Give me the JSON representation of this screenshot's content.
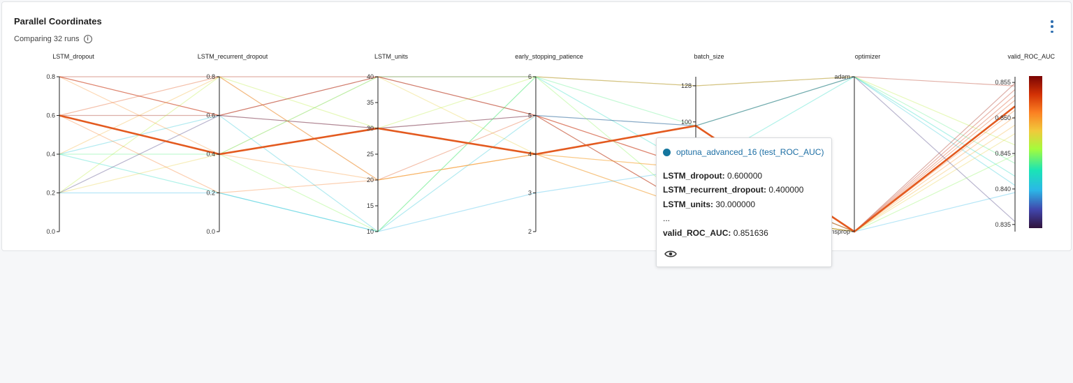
{
  "panel": {
    "title": "Parallel Coordinates",
    "subtitle": "Comparing 32 runs"
  },
  "colors": {
    "highlight": "#e35a1f",
    "axis": "#222222",
    "accent_blue": "#2f6fb1"
  },
  "chart_data": {
    "type": "parallel_coordinates",
    "axes": [
      {
        "name": "LSTM_dropout",
        "range": [
          0,
          0.8
        ],
        "ticks": [
          "0.0",
          "0.2",
          "0.4",
          "0.6",
          "0.8"
        ]
      },
      {
        "name": "LSTM_recurrent_dropout",
        "range": [
          0,
          0.8
        ],
        "ticks": [
          "0.0",
          "0.2",
          "0.4",
          "0.6",
          "0.8"
        ]
      },
      {
        "name": "LSTM_units",
        "range": [
          10,
          40
        ],
        "ticks": [
          "10",
          "15",
          "20",
          "25",
          "30",
          "35",
          "40"
        ]
      },
      {
        "name": "early_stopping_patience",
        "range": [
          2,
          6
        ],
        "ticks": [
          "2",
          "3",
          "4",
          "5",
          "6"
        ]
      },
      {
        "name": "batch_size",
        "range": [
          15,
          135
        ],
        "ticks": [
          "100",
          "128"
        ],
        "tick_values": [
          100,
          128
        ]
      },
      {
        "name": "optimizer",
        "categorical": true,
        "ticks": [
          "adam",
          "rmsprop"
        ]
      },
      {
        "name": "valid_ROC_AUC",
        "range": [
          0.834,
          0.8558
        ],
        "ticks": [
          "0.835",
          "0.840",
          "0.845",
          "0.850",
          "0.855"
        ],
        "tick_values": [
          0.835,
          0.84,
          0.845,
          0.85,
          0.855
        ]
      }
    ],
    "colorbar": {
      "range": [
        0.834,
        0.856
      ],
      "colormap": "turbo"
    },
    "highlighted_run": {
      "name": "optuna_advanced_16",
      "values": [
        0.6,
        0.4,
        30,
        4,
        97,
        "rmsprop",
        0.851636
      ]
    },
    "runs": [
      {
        "values": [
          0.8,
          0.8,
          40,
          6,
          128,
          "adam",
          0.8545
        ]
      },
      {
        "values": [
          0.8,
          0.6,
          30,
          5,
          64,
          "rmsprop",
          0.8532
        ]
      },
      {
        "values": [
          0.6,
          0.8,
          20,
          5,
          32,
          "rmsprop",
          0.8525
        ]
      },
      {
        "values": [
          0.4,
          0.2,
          10,
          6,
          64,
          "adam",
          0.8418
        ]
      },
      {
        "values": [
          0.2,
          0.4,
          40,
          4,
          32,
          "rmsprop",
          0.8478
        ]
      },
      {
        "values": [
          0.4,
          0.6,
          10,
          5,
          97,
          "adam",
          0.8405
        ]
      },
      {
        "values": [
          0.8,
          0.4,
          20,
          4,
          64,
          "rmsprop",
          0.8502
        ]
      },
      {
        "values": [
          0.6,
          0.6,
          40,
          5,
          32,
          "rmsprop",
          0.8549
        ]
      },
      {
        "values": [
          0.2,
          0.8,
          30,
          6,
          128,
          "adam",
          0.8462
        ]
      },
      {
        "values": [
          0.2,
          0.2,
          10,
          3,
          64,
          "rmsprop",
          0.8395
        ]
      },
      {
        "values": [
          0.4,
          0.4,
          40,
          6,
          97,
          "adam",
          0.8436
        ]
      },
      {
        "values": [
          0.6,
          0.2,
          20,
          4,
          32,
          "rmsprop",
          0.8511
        ]
      },
      {
        "values": [
          0.8,
          0.6,
          40,
          5,
          64,
          "rmsprop",
          0.854
        ]
      },
      {
        "values": [
          0.2,
          0.6,
          30,
          5,
          97,
          "adam",
          0.8354
        ]
      },
      {
        "values": [
          0.6,
          0.4,
          10,
          6,
          32,
          "rmsprop",
          0.8448
        ]
      },
      {
        "values": [
          0.4,
          0.8,
          20,
          4,
          64,
          "rmsprop",
          0.849
        ]
      }
    ]
  },
  "tooltip": {
    "run_label": "optuna_advanced_16 (test_ROC_AUC)",
    "rows": [
      {
        "label": "LSTM_dropout:",
        "value": "0.600000"
      },
      {
        "label": "LSTM_recurrent_dropout:",
        "value": "0.400000"
      },
      {
        "label": "LSTM_units:",
        "value": "30.000000"
      }
    ],
    "ellipsis": "...",
    "metric": {
      "label": "valid_ROC_AUC:",
      "value": "0.851636"
    }
  }
}
